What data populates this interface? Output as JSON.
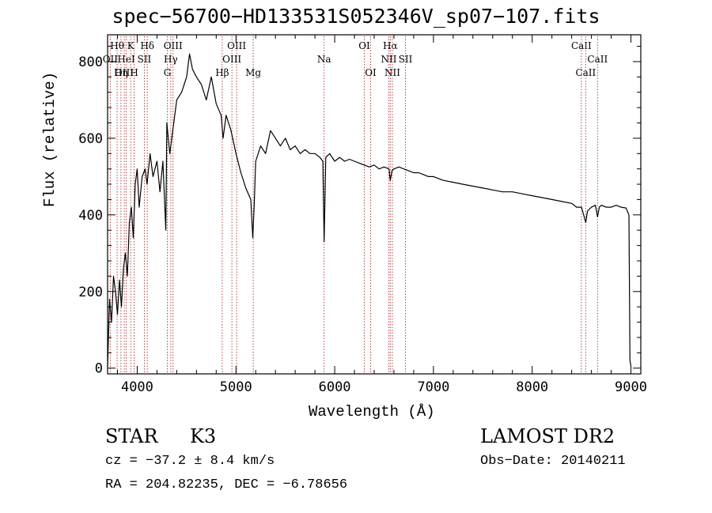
{
  "title": "spec−56700−HD133531S052346V_sp07−107.fits",
  "chart_data": {
    "type": "line",
    "xlabel": "Wavelength (Å)",
    "ylabel": "Flux (relative)",
    "xlim": [
      3700,
      9100
    ],
    "ylim": [
      -15,
      870
    ],
    "xticks": [
      4000,
      5000,
      6000,
      7000,
      8000,
      9000
    ],
    "yticks": [
      0,
      200,
      400,
      600,
      800
    ],
    "series": [
      {
        "x": [
          3700,
          3720,
          3740,
          3760,
          3780,
          3800,
          3820,
          3840,
          3860,
          3880,
          3900,
          3920,
          3940,
          3960,
          3980,
          4000,
          4020,
          4050,
          4080,
          4100,
          4130,
          4160,
          4200,
          4230,
          4260,
          4290,
          4300,
          4330,
          4360,
          4400,
          4450,
          4500,
          4530,
          4560,
          4600,
          4650,
          4700,
          4750,
          4800,
          4850,
          4870,
          4900,
          4950,
          5000,
          5050,
          5100,
          5150,
          5170,
          5185,
          5200,
          5250,
          5300,
          5350,
          5400,
          5450,
          5500,
          5550,
          5600,
          5650,
          5700,
          5750,
          5800,
          5850,
          5880,
          5893,
          5910,
          5950,
          6000,
          6050,
          6100,
          6150,
          6200,
          6250,
          6300,
          6350,
          6400,
          6450,
          6500,
          6550,
          6563,
          6580,
          6600,
          6650,
          6700,
          6750,
          6800,
          6850,
          6900,
          6950,
          7000,
          7100,
          7200,
          7300,
          7400,
          7500,
          7600,
          7700,
          7800,
          7900,
          8000,
          8100,
          8200,
          8300,
          8400,
          8450,
          8500,
          8542,
          8560,
          8600,
          8640,
          8662,
          8680,
          8700,
          8750,
          8800,
          8850,
          8900,
          8950,
          8980,
          8990,
          9000
        ],
        "values": [
          5,
          180,
          120,
          240,
          200,
          140,
          230,
          160,
          260,
          300,
          240,
          380,
          420,
          340,
          480,
          520,
          420,
          500,
          520,
          480,
          560,
          500,
          540,
          460,
          540,
          360,
          640,
          560,
          620,
          700,
          720,
          760,
          820,
          780,
          760,
          740,
          700,
          760,
          690,
          660,
          600,
          660,
          620,
          560,
          510,
          470,
          440,
          340,
          430,
          540,
          580,
          560,
          620,
          600,
          580,
          600,
          570,
          580,
          560,
          570,
          560,
          560,
          550,
          540,
          330,
          550,
          560,
          540,
          550,
          540,
          545,
          540,
          535,
          530,
          525,
          530,
          520,
          525,
          520,
          490,
          515,
          520,
          525,
          520,
          515,
          510,
          510,
          505,
          500,
          500,
          490,
          485,
          480,
          475,
          470,
          465,
          460,
          460,
          455,
          450,
          445,
          440,
          435,
          430,
          420,
          420,
          380,
          410,
          420,
          425,
          395,
          420,
          425,
          420,
          420,
          425,
          420,
          418,
          400,
          20,
          5
        ]
      }
    ],
    "lines": [
      {
        "name": "Hθ",
        "x": 3797,
        "row": 1
      },
      {
        "name": "OII",
        "x": 3727,
        "row": 2
      },
      {
        "name": "OIII",
        "x": 3869,
        "row": 3
      },
      {
        "name": "HeI",
        "x": 3889,
        "row": 2
      },
      {
        "name": "K",
        "x": 3934,
        "row": 1
      },
      {
        "name": "Hη",
        "x": 3835,
        "row": 3
      },
      {
        "name": "H",
        "x": 3969,
        "row": 3
      },
      {
        "name": "SII",
        "x": 4072,
        "row": 2
      },
      {
        "name": "Hδ",
        "x": 4102,
        "row": 1
      },
      {
        "name": "OIII",
        "x": 4363,
        "row": 1
      },
      {
        "name": "Hγ",
        "x": 4340,
        "row": 2
      },
      {
        "name": "G",
        "x": 4305,
        "row": 3
      },
      {
        "name": "Hβ",
        "x": 4861,
        "row": 3
      },
      {
        "name": "OIII",
        "x": 5007,
        "row": 1
      },
      {
        "name": "OIII",
        "x": 4959,
        "row": 2
      },
      {
        "name": "Mg",
        "x": 5175,
        "row": 3
      },
      {
        "name": "Na",
        "x": 5893,
        "row": 2
      },
      {
        "name": "OI",
        "x": 6300,
        "row": 1
      },
      {
        "name": "OI",
        "x": 6364,
        "row": 3
      },
      {
        "name": "Hα",
        "x": 6563,
        "row": 1
      },
      {
        "name": "NII",
        "x": 6548,
        "row": 2
      },
      {
        "name": "NII",
        "x": 6584,
        "row": 3
      },
      {
        "name": "SII",
        "x": 6717,
        "row": 2
      },
      {
        "name": "CaII",
        "x": 8498,
        "row": 1
      },
      {
        "name": "CaII",
        "x": 8542,
        "row": 3
      },
      {
        "name": "CaII",
        "x": 8662,
        "row": 2
      }
    ]
  },
  "info": {
    "class": "STAR",
    "subclass": "K3",
    "survey": "LAMOST DR2",
    "cz": "cz = −37.2 ± 8.4 km/s",
    "obsdate": "Obs−Date: 20140211",
    "radec": "RA = 204.82235, DEC =  −6.78656"
  }
}
